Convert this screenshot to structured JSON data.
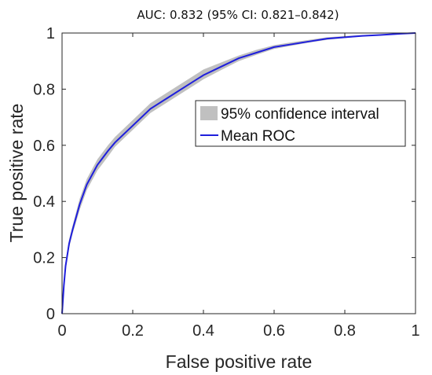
{
  "chart_data": {
    "type": "line",
    "title": "AUC: 0.832 (95% CI: 0.821–0.842)",
    "xlabel": "False positive rate",
    "ylabel": "True positive rate",
    "xlim": [
      0,
      1
    ],
    "ylim": [
      0,
      1
    ],
    "x_ticks": [
      0,
      0.2,
      0.4,
      0.6,
      0.8,
      1
    ],
    "y_ticks": [
      0,
      0.2,
      0.4,
      0.6,
      0.8,
      1
    ],
    "x_tick_labels": [
      "0",
      "0.2",
      "0.4",
      "0.6",
      "0.8",
      "1"
    ],
    "y_tick_labels": [
      "0",
      "0.2",
      "0.4",
      "0.6",
      "0.8",
      "1"
    ],
    "grid": false,
    "legend_position": "center-right",
    "series": [
      {
        "name": "Mean ROC",
        "color": "#1f1fdc",
        "x": [
          0,
          0.005,
          0.01,
          0.02,
          0.03,
          0.05,
          0.07,
          0.1,
          0.13,
          0.15,
          0.2,
          0.25,
          0.3,
          0.35,
          0.4,
          0.45,
          0.5,
          0.55,
          0.6,
          0.65,
          0.7,
          0.75,
          0.8,
          0.85,
          0.9,
          0.95,
          1
        ],
        "y": [
          0,
          0.1,
          0.17,
          0.25,
          0.3,
          0.39,
          0.46,
          0.53,
          0.58,
          0.61,
          0.67,
          0.73,
          0.77,
          0.81,
          0.85,
          0.88,
          0.91,
          0.93,
          0.95,
          0.96,
          0.97,
          0.98,
          0.985,
          0.99,
          0.993,
          0.997,
          1
        ]
      },
      {
        "name": "95% confidence interval",
        "type": "band",
        "color": "#c0c0c0",
        "x": [
          0,
          0.005,
          0.01,
          0.02,
          0.03,
          0.05,
          0.07,
          0.1,
          0.13,
          0.15,
          0.2,
          0.25,
          0.3,
          0.35,
          0.4,
          0.45,
          0.5,
          0.55,
          0.6,
          0.65,
          0.7,
          0.75,
          0.8,
          0.85,
          0.9,
          0.95,
          1
        ],
        "lower": [
          0,
          0.09,
          0.155,
          0.235,
          0.285,
          0.37,
          0.44,
          0.51,
          0.56,
          0.595,
          0.655,
          0.715,
          0.755,
          0.795,
          0.835,
          0.868,
          0.9,
          0.922,
          0.943,
          0.955,
          0.966,
          0.976,
          0.982,
          0.988,
          0.991,
          0.996,
          1
        ],
        "upper": [
          0,
          0.11,
          0.185,
          0.265,
          0.315,
          0.41,
          0.48,
          0.55,
          0.6,
          0.63,
          0.69,
          0.75,
          0.79,
          0.83,
          0.87,
          0.895,
          0.92,
          0.94,
          0.957,
          0.967,
          0.976,
          0.985,
          0.989,
          0.993,
          0.995,
          0.998,
          1
        ]
      }
    ]
  }
}
